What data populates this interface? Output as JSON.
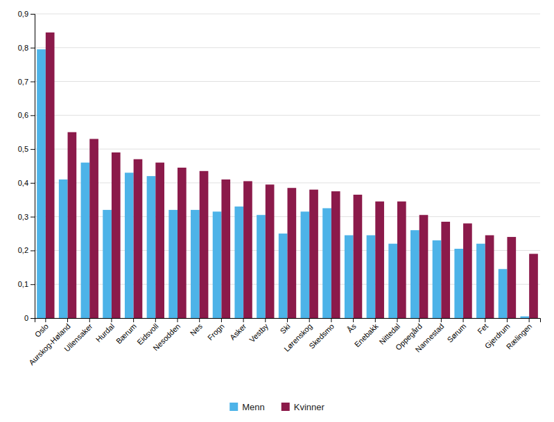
{
  "chart_data": {
    "type": "bar",
    "categories": [
      "Oslo",
      "Aurskog-Høland",
      "Ullensaker",
      "Hurdal",
      "Bærum",
      "Eidsvoll",
      "Nesodden",
      "Nes",
      "Frogn",
      "Asker",
      "Vestby",
      "Ski",
      "Lørenskog",
      "Skedsmo",
      "Ås",
      "Enebakk",
      "Nittedal",
      "Oppegård",
      "Nannestad",
      "Sørum",
      "Fet",
      "Gjerdrum",
      "Rælingen"
    ],
    "series": [
      {
        "name": "Menn",
        "color": "#4DB3E8",
        "values": [
          0.795,
          0.41,
          0.46,
          0.32,
          0.43,
          0.42,
          0.32,
          0.32,
          0.315,
          0.33,
          0.305,
          0.25,
          0.315,
          0.325,
          0.245,
          0.245,
          0.22,
          0.26,
          0.23,
          0.205,
          0.22,
          0.145,
          0.005
        ]
      },
      {
        "name": "Kvinner",
        "color": "#8B1A4A",
        "values": [
          0.845,
          0.55,
          0.53,
          0.49,
          0.47,
          0.46,
          0.445,
          0.435,
          0.41,
          0.405,
          0.395,
          0.385,
          0.38,
          0.375,
          0.365,
          0.345,
          0.345,
          0.305,
          0.285,
          0.28,
          0.245,
          0.24,
          0.19
        ]
      }
    ],
    "ylim": [
      0,
      0.9
    ],
    "yticks": [
      0,
      {
        "value": 0.1,
        "label": "0,1"
      },
      {
        "value": 0.2,
        "label": "0,2"
      },
      {
        "value": 0.3,
        "label": "0,3"
      },
      {
        "value": 0.4,
        "label": "0,4"
      },
      {
        "value": 0.5,
        "label": "0,5"
      },
      {
        "value": 0.6,
        "label": "0,6"
      },
      {
        "value": 0.7,
        "label": "0,7"
      },
      {
        "value": 0.8,
        "label": "0,8"
      },
      {
        "value": 0.9,
        "label": "0,9"
      }
    ],
    "grid": true,
    "legend": "bottom"
  }
}
